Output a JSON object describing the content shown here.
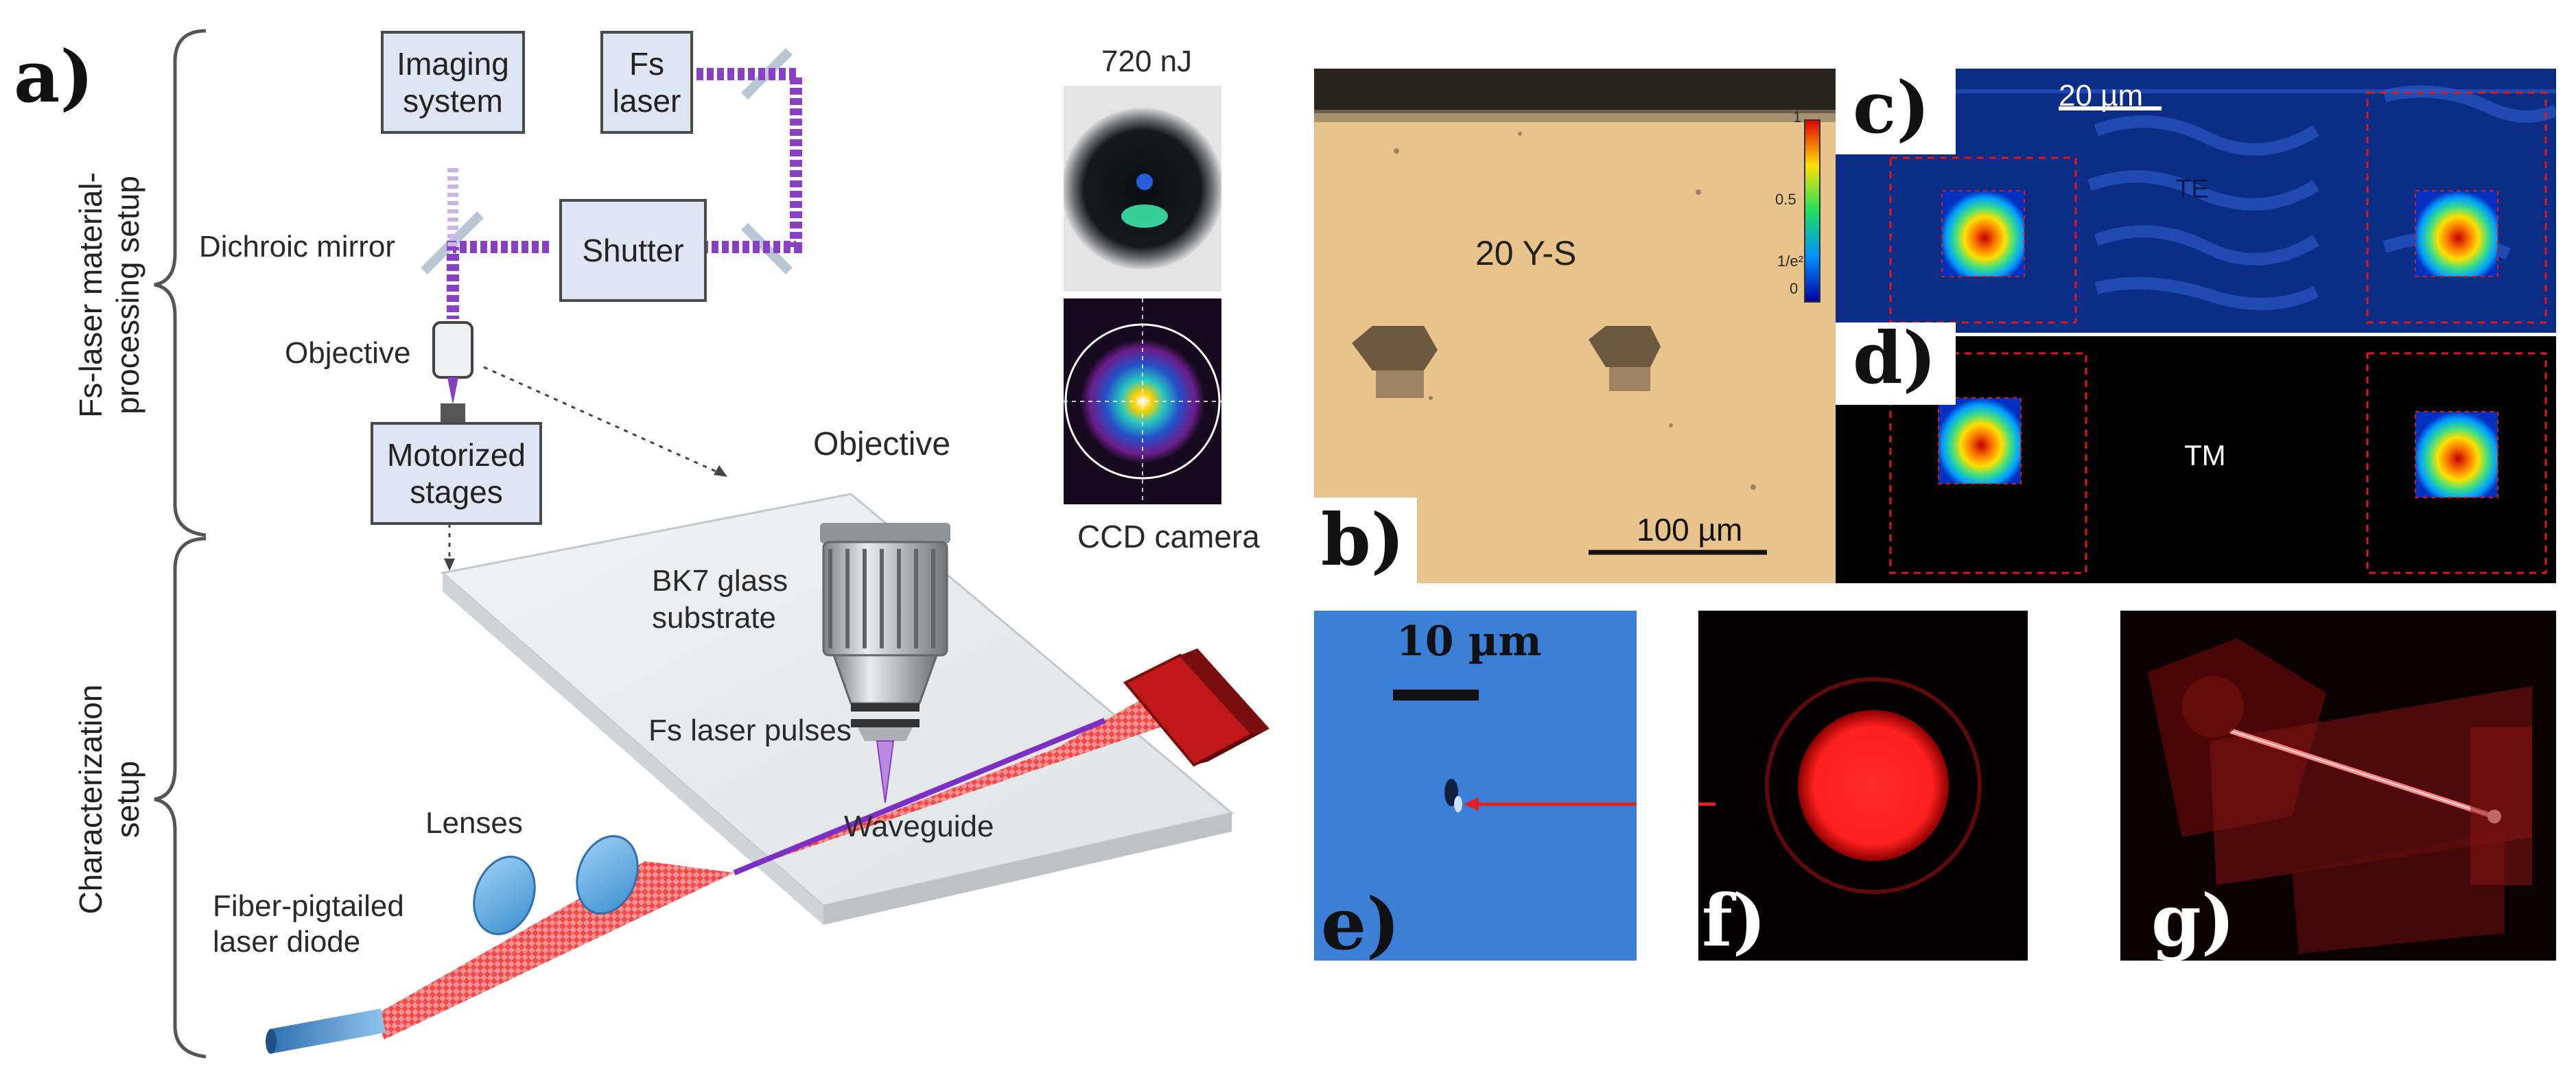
{
  "panel_a": {
    "letter": "a)",
    "section_processing": "Fs-laser material-\nprocessing setup",
    "section_characterization": "Characterization\nsetup",
    "imaging_system": "Imaging\nsystem",
    "fs_laser": "Fs\nlaser",
    "shutter": "Shutter",
    "motorized_stages": "Motorized\nstages",
    "dichroic_mirror": "Dichroic mirror",
    "objective_upper": "Objective",
    "objective_lower": "Objective",
    "bk7": "BK7 glass\nsubstrate",
    "fs_pulses": "Fs laser pulses",
    "waveguide": "Waveguide",
    "lenses": "Lenses",
    "fiber_diode": "Fiber-pigtailed\nlaser diode",
    "ccd_camera": "CCD camera",
    "energy": "720 nJ"
  },
  "panel_b": {
    "letter": "b)",
    "sample": "20 Y-S",
    "scale": "100 µm",
    "colorbar_ticks": [
      "1",
      "0.5",
      "1/e²",
      "0"
    ]
  },
  "panel_c": {
    "letter": "c)",
    "mode": "TE",
    "scale": "20 µm"
  },
  "panel_d": {
    "letter": "d)",
    "mode": "TM"
  },
  "panel_e": {
    "letter": "e)",
    "scale": "10 µm"
  },
  "panel_f": {
    "letter": "f)"
  },
  "panel_g": {
    "letter": "g)"
  },
  "colors": {
    "box_fill": "#dde6f2",
    "femto_beam": "#8a3fc7",
    "probe_beam": "#e02020",
    "panel_b_bg": "#e9c48f",
    "panel_c_bg": "#0a2a7a",
    "panel_e_bg": "#3b7fd6"
  }
}
